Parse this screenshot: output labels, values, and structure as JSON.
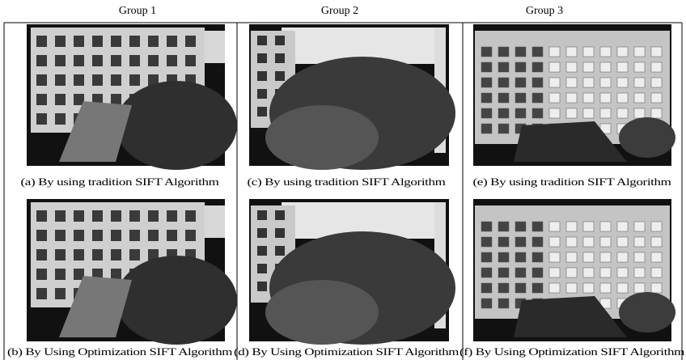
{
  "columns": [
    {
      "header": "Group 1",
      "panels": [
        "(a) By using tradition SIFT Algorithm",
        "(b) By Using Optimization SIFT Algorithm"
      ]
    },
    {
      "header": "Group 2",
      "panels": [
        "(c) By using tradition SIFT Algorithm",
        "(d) By Using Optimization SIFT Algorithm"
      ]
    },
    {
      "header": "Group 3",
      "panels": [
        "(e) By using tradition SIFT Algorithm",
        "(f) By Using Optimization SIFT Algorithm"
      ]
    }
  ]
}
